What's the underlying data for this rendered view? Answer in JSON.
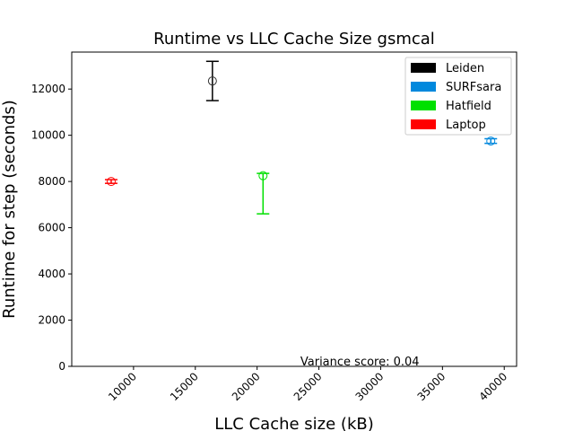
{
  "chart_data": {
    "type": "scatter",
    "title": "Runtime vs LLC Cache Size gsmcal",
    "xlabel": "LLC Cache size (kB)",
    "ylabel": "Runtime for step (seconds)",
    "xlim": [
      5000,
      41000
    ],
    "ylim": [
      0,
      13600
    ],
    "xticks": [
      10000,
      15000,
      20000,
      25000,
      30000,
      35000,
      40000
    ],
    "yticks": [
      0,
      2000,
      4000,
      6000,
      8000,
      10000,
      12000
    ],
    "legend_position": "top-right",
    "annotation": {
      "text": "Variance score: 0.04",
      "x": 23500,
      "y": 0
    },
    "series": [
      {
        "name": "Leiden",
        "color": "#000000",
        "x": 16384,
        "y": 12350,
        "err_low": 11500,
        "err_high": 13200
      },
      {
        "name": "SURFsara",
        "color": "#0088dd",
        "x": 38912,
        "y": 9750,
        "err_low": 9650,
        "err_high": 9850
      },
      {
        "name": "Hatfield",
        "color": "#00e000",
        "x": 20480,
        "y": 8250,
        "err_low": 6600,
        "err_high": 8350
      },
      {
        "name": "Laptop",
        "color": "#ff0000",
        "x": 8192,
        "y": 8000,
        "err_low": 7920,
        "err_high": 8080
      }
    ]
  }
}
